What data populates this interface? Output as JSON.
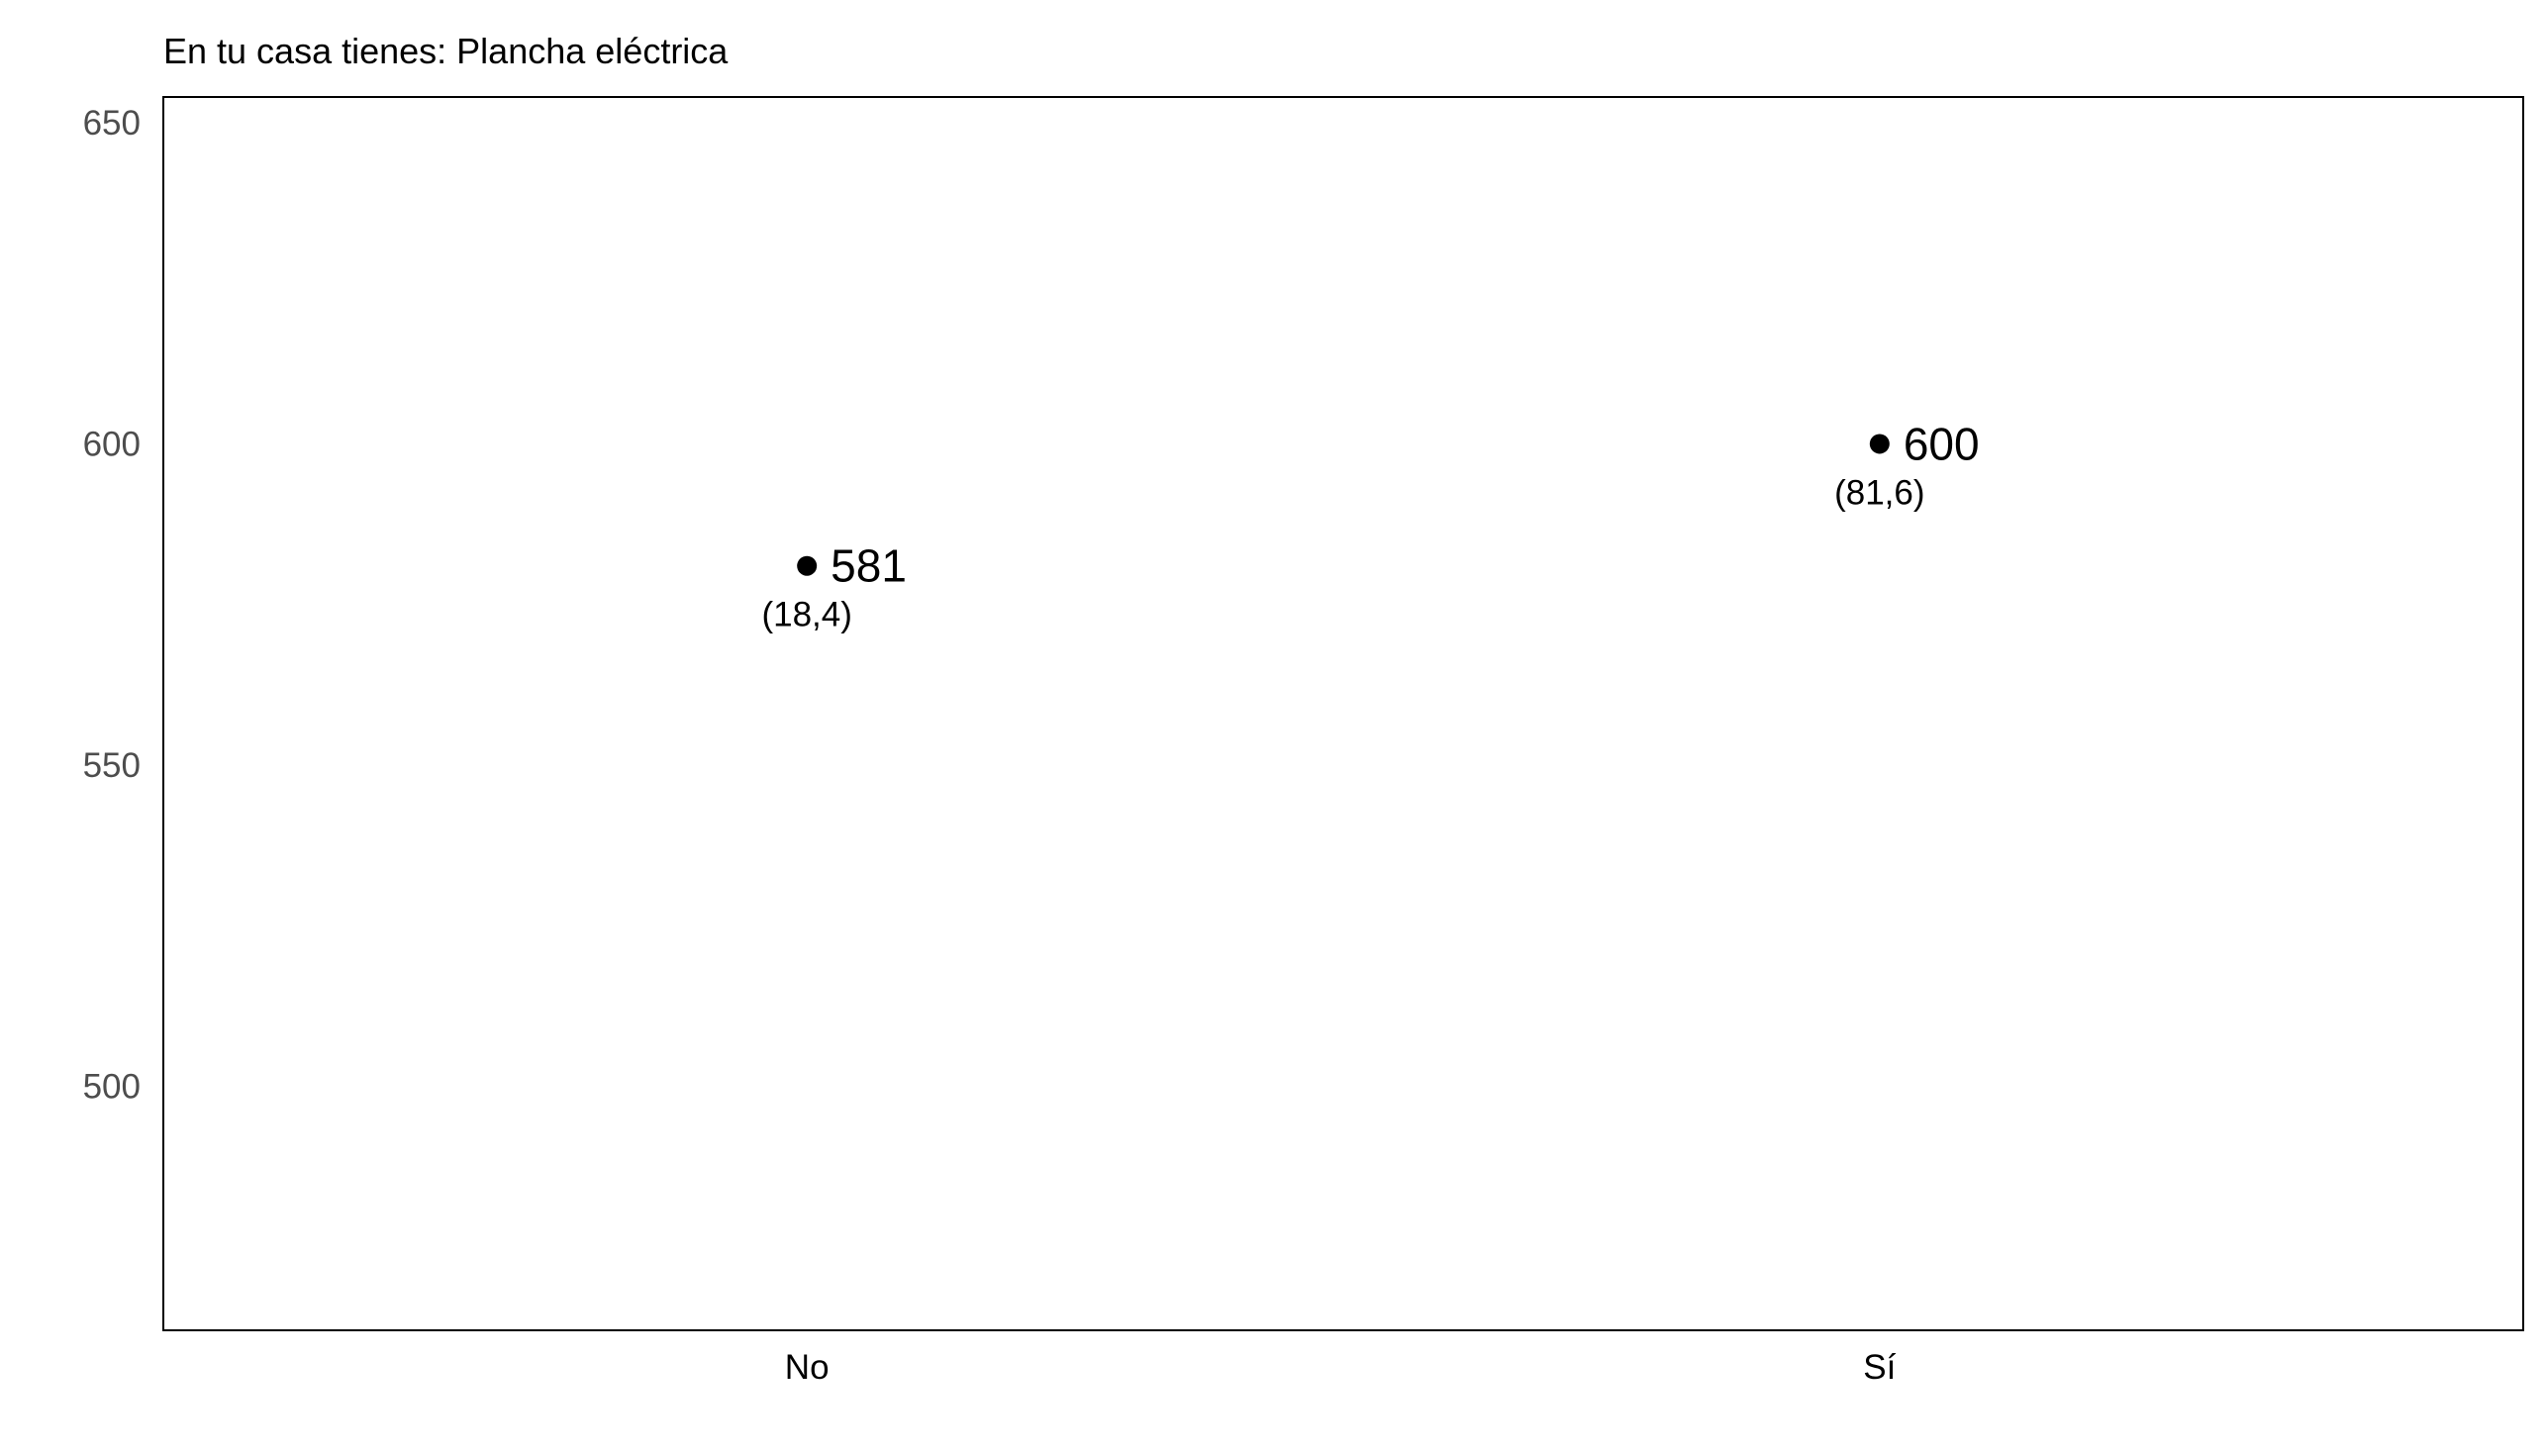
{
  "chart_data": {
    "type": "scatter",
    "title": "En tu casa tienes: Plancha eléctrica",
    "xlabel": "",
    "ylabel": "",
    "categories": [
      "No",
      "Sí"
    ],
    "values": [
      581,
      600
    ],
    "value_labels": [
      "581",
      "600"
    ],
    "percent_labels": [
      "(18,4)",
      "(81,6)"
    ],
    "ylim": [
      462,
      654
    ],
    "yticks": [
      500,
      550,
      600,
      650
    ],
    "ytick_labels": [
      "500",
      "550",
      "600",
      "650"
    ],
    "grid": false,
    "legend": "none",
    "colors": {
      "point": "#000000",
      "frame": "#000000",
      "tick_text": "#4d4d4d"
    }
  }
}
